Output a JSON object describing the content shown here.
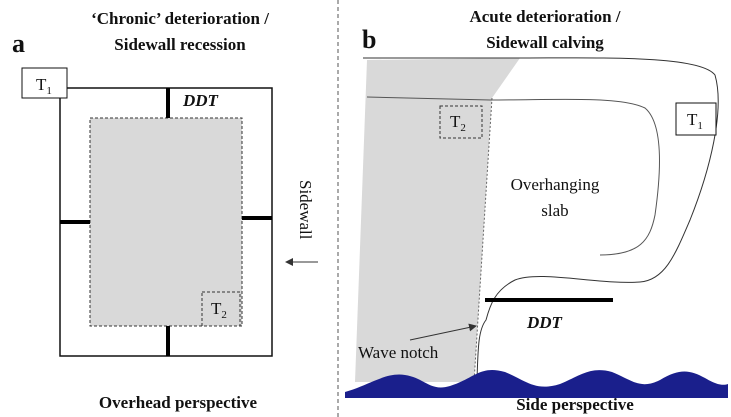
{
  "panel_a": {
    "letter": "a",
    "title": [
      "‘Chronic’ deterioration /",
      "Sidewall recession"
    ],
    "t1": {
      "text": "T",
      "sub": "1"
    },
    "ddt": "DDT",
    "t2": {
      "text": "T",
      "sub": "2"
    },
    "sidewall": "Sidewall",
    "caption": "Overhead perspective"
  },
  "panel_b": {
    "letter": "b",
    "title": [
      "Acute deterioration /",
      "Sidewall calving"
    ],
    "t1": {
      "text": "T",
      "sub": "1"
    },
    "t2": {
      "text": "T",
      "sub": "2"
    },
    "slab": [
      "Overhanging",
      "slab"
    ],
    "ddt": "DDT",
    "wave_notch": "Wave notch",
    "caption": "Side perspective"
  }
}
